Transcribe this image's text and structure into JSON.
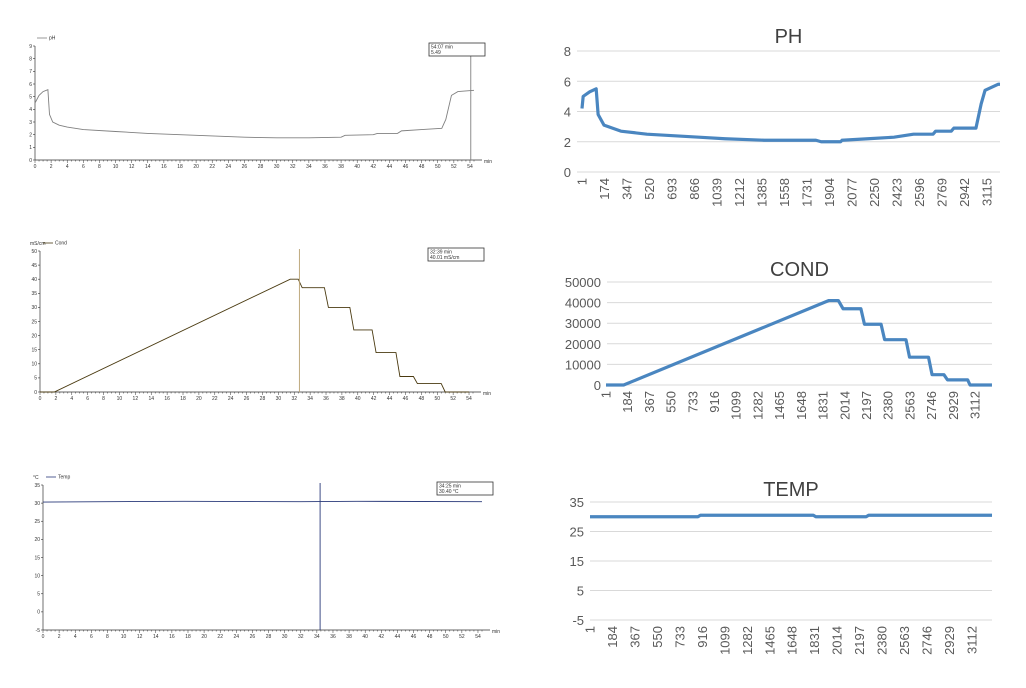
{
  "chart_data": [
    {
      "type": "line",
      "legend": "pH",
      "xlabel": "min",
      "ylabel": "",
      "xlim": [
        0,
        54.5
      ],
      "ylim": [
        0,
        9
      ],
      "xticks": [
        0,
        2,
        4,
        6,
        8,
        10,
        12,
        14,
        16,
        18,
        20,
        22,
        24,
        26,
        28,
        30,
        32,
        34,
        36,
        38,
        40,
        42,
        44,
        46,
        48,
        50,
        52,
        54
      ],
      "yticks": [
        0,
        1,
        2,
        3,
        4,
        5,
        6,
        7,
        8,
        9
      ],
      "legend_placement": "top-left",
      "grid": false,
      "color": "#808080",
      "cursor": {
        "x": 54.1,
        "time": "54:07 min",
        "value": "5.49"
      },
      "points": [
        [
          0,
          4.5
        ],
        [
          0.5,
          5.1
        ],
        [
          1,
          5.4
        ],
        [
          1.6,
          5.55
        ],
        [
          1.8,
          3.6
        ],
        [
          2.2,
          3.0
        ],
        [
          3,
          2.75
        ],
        [
          4,
          2.6
        ],
        [
          6,
          2.4
        ],
        [
          10,
          2.25
        ],
        [
          14,
          2.1
        ],
        [
          18,
          2.0
        ],
        [
          22,
          1.9
        ],
        [
          26,
          1.8
        ],
        [
          30,
          1.75
        ],
        [
          34,
          1.75
        ],
        [
          38,
          1.8
        ],
        [
          38.5,
          1.95
        ],
        [
          42,
          2.0
        ],
        [
          42.5,
          2.1
        ],
        [
          45,
          2.1
        ],
        [
          45.5,
          2.3
        ],
        [
          48,
          2.4
        ],
        [
          50.5,
          2.5
        ],
        [
          51,
          3.2
        ],
        [
          51.7,
          5.1
        ],
        [
          52.5,
          5.4
        ],
        [
          54.5,
          5.5
        ]
      ]
    },
    {
      "type": "line",
      "legend": "Cond",
      "xlabel": "min",
      "ylabel": "mS/cm",
      "xlim": [
        0,
        54.5
      ],
      "ylim": [
        0,
        50
      ],
      "xticks": [
        0,
        2,
        4,
        6,
        8,
        10,
        12,
        14,
        16,
        18,
        20,
        22,
        24,
        26,
        28,
        30,
        32,
        34,
        36,
        38,
        40,
        42,
        44,
        46,
        48,
        50,
        52,
        54
      ],
      "yticks": [
        0,
        5,
        10,
        15,
        20,
        25,
        30,
        35,
        40,
        45,
        50
      ],
      "legend_placement": "top-left",
      "grid": false,
      "color": "#4a3a10",
      "cursor_color": "#b8a070",
      "cursor": {
        "x": 32.65,
        "time": "32:39 min",
        "value": "40.01  mS/cm"
      },
      "points": [
        [
          0,
          0
        ],
        [
          1.8,
          0
        ],
        [
          31.5,
          40
        ],
        [
          32.5,
          40
        ],
        [
          33,
          37
        ],
        [
          35.8,
          37
        ],
        [
          36.3,
          30
        ],
        [
          39,
          30
        ],
        [
          39.5,
          22
        ],
        [
          41.8,
          22
        ],
        [
          42.3,
          14
        ],
        [
          44.8,
          14
        ],
        [
          45.3,
          5.5
        ],
        [
          47,
          5.5
        ],
        [
          47.5,
          3
        ],
        [
          50.5,
          3
        ],
        [
          51,
          0
        ],
        [
          54,
          0
        ]
      ]
    },
    {
      "type": "line",
      "legend": "Temp",
      "xlabel": "min",
      "ylabel": "°C",
      "xlim": [
        0,
        54.5
      ],
      "ylim": [
        -5,
        35
      ],
      "xticks": [
        0,
        2,
        4,
        6,
        8,
        10,
        12,
        14,
        16,
        18,
        20,
        22,
        24,
        26,
        28,
        30,
        32,
        34,
        36,
        38,
        40,
        42,
        44,
        46,
        48,
        50,
        52,
        54
      ],
      "yticks": [
        -5,
        0,
        5,
        10,
        15,
        20,
        25,
        30,
        35
      ],
      "legend_placement": "top-left",
      "grid": false,
      "color": "#2a3a7a",
      "cursor": {
        "x": 34.4,
        "time": "34:25 min",
        "value": "30.40 °C"
      },
      "points": [
        [
          0,
          30.3
        ],
        [
          17.5,
          30.5
        ],
        [
          32,
          30.4
        ],
        [
          39,
          30.5
        ],
        [
          54.5,
          30.4
        ]
      ]
    },
    {
      "type": "line",
      "title": "PH",
      "ylim": [
        0,
        8
      ],
      "yticks": [
        0,
        2,
        4,
        6,
        8
      ],
      "xticks": [
        1,
        174,
        347,
        520,
        693,
        866,
        1039,
        1212,
        1385,
        1558,
        1731,
        1904,
        2077,
        2250,
        2423,
        2596,
        2769,
        2942,
        3115
      ],
      "grid": true,
      "color": "#4a86c0",
      "points": [
        [
          1,
          4.2
        ],
        [
          10,
          5.0
        ],
        [
          60,
          5.3
        ],
        [
          110,
          5.5
        ],
        [
          125,
          3.8
        ],
        [
          170,
          3.1
        ],
        [
          300,
          2.7
        ],
        [
          500,
          2.5
        ],
        [
          700,
          2.4
        ],
        [
          900,
          2.3
        ],
        [
          1100,
          2.2
        ],
        [
          1400,
          2.1
        ],
        [
          1800,
          2.1
        ],
        [
          1840,
          2.0
        ],
        [
          1990,
          2.0
        ],
        [
          2000,
          2.1
        ],
        [
          2200,
          2.2
        ],
        [
          2400,
          2.3
        ],
        [
          2550,
          2.5
        ],
        [
          2700,
          2.5
        ],
        [
          2720,
          2.7
        ],
        [
          2840,
          2.7
        ],
        [
          2860,
          2.9
        ],
        [
          3030,
          2.9
        ],
        [
          3070,
          4.5
        ],
        [
          3100,
          5.4
        ],
        [
          3200,
          5.8
        ],
        [
          3215,
          5.8
        ]
      ]
    },
    {
      "type": "line",
      "title": "COND",
      "ylim": [
        0,
        50000
      ],
      "yticks": [
        0,
        10000,
        20000,
        30000,
        40000,
        50000
      ],
      "xticks": [
        1,
        184,
        367,
        550,
        733,
        916,
        1099,
        1282,
        1465,
        1648,
        1831,
        2014,
        2197,
        2380,
        2563,
        2746,
        2929,
        3112
      ],
      "grid": true,
      "color": "#4a86c0",
      "points": [
        [
          1,
          0
        ],
        [
          150,
          0
        ],
        [
          1880,
          41000
        ],
        [
          1960,
          41000
        ],
        [
          2000,
          37000
        ],
        [
          2150,
          37000
        ],
        [
          2180,
          29500
        ],
        [
          2320,
          29500
        ],
        [
          2350,
          22000
        ],
        [
          2530,
          22000
        ],
        [
          2560,
          13500
        ],
        [
          2720,
          13500
        ],
        [
          2750,
          5000
        ],
        [
          2850,
          5000
        ],
        [
          2880,
          2500
        ],
        [
          3050,
          2500
        ],
        [
          3070,
          0
        ],
        [
          3255,
          0
        ]
      ]
    },
    {
      "type": "line",
      "title": "TEMP",
      "ylim": [
        -5,
        35
      ],
      "yticks": [
        -5,
        5,
        15,
        25,
        35
      ],
      "xticks": [
        1,
        184,
        367,
        550,
        733,
        916,
        1099,
        1282,
        1465,
        1648,
        1831,
        2014,
        2197,
        2380,
        2563,
        2746,
        2929,
        3112
      ],
      "grid": true,
      "color": "#4a86c0",
      "points": [
        [
          1,
          30
        ],
        [
          880,
          30
        ],
        [
          900,
          30.5
        ],
        [
          1820,
          30.5
        ],
        [
          1840,
          30
        ],
        [
          2250,
          30
        ],
        [
          2270,
          30.5
        ],
        [
          3275,
          30.5
        ]
      ]
    }
  ]
}
